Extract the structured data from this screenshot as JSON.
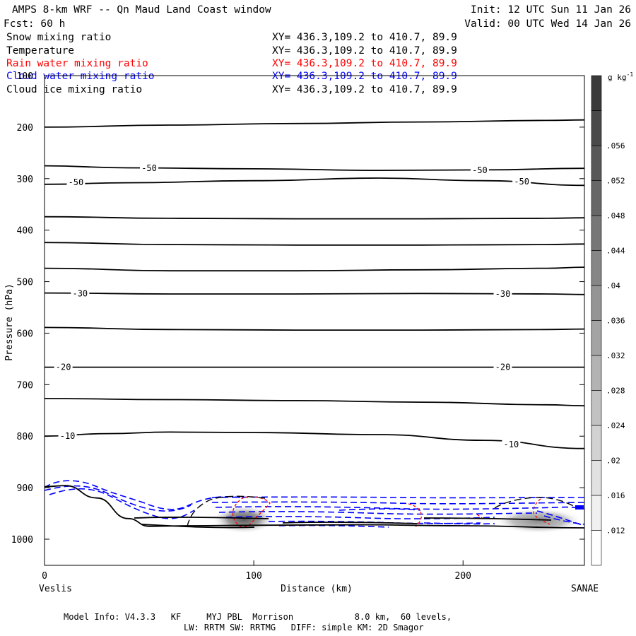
{
  "header": {
    "title": "AMPS 8-km WRF -- Qn Maud Land Coast window",
    "forecast": "Fcst:   60 h",
    "init": "Init: 12 UTC Sun 11 Jan 26",
    "valid": "Valid: 00 UTC Wed 14 Jan 26"
  },
  "fields": [
    {
      "label": "Snow mixing ratio",
      "xy": "XY= 436.3,109.2 to 410.7, 89.9",
      "color": "#000000"
    },
    {
      "label": "Temperature",
      "xy": "XY= 436.3,109.2 to 410.7, 89.9",
      "color": "#000000"
    },
    {
      "label": "Rain water mixing ratio",
      "xy": "XY= 436.3,109.2 to 410.7, 89.9",
      "color": "#ff0000"
    },
    {
      "label": "Cloud water mixing ratio",
      "xy": "XY= 436.3,109.2 to 410.7, 89.9",
      "color": "#0000ff"
    },
    {
      "label": "Cloud ice mixing ratio",
      "xy": "XY= 436.3,109.2 to 410.7, 89.9",
      "color": "#000000"
    }
  ],
  "axes": {
    "ylabel": "Pressure (hPa)",
    "xlabel": "Distance (km)",
    "x_left_endpoint": "Veslis",
    "x_right_endpoint": "SANAE"
  },
  "colorbar": {
    "unit": "g kg",
    "unit_exp": "-1",
    "ticks": [
      ".012",
      ".016",
      ".02",
      ".024",
      ".028",
      ".032",
      ".036",
      ".04",
      ".044",
      ".048",
      ".052",
      ".056"
    ]
  },
  "footer": {
    "line1": "Model Info: V4.3.3   KF     MYJ PBL  Morrison            8.0 km,  60 levels,",
    "line2": "LW: RRTM SW: RRTMG   DIFF: simple KM: 2D Smagor"
  },
  "chart_data": {
    "type": "line",
    "title": "AMPS 8-km WRF -- Qn Maud Land Coast window",
    "xlabel": "Distance (km)",
    "ylabel": "Pressure (hPa)",
    "xlim": [
      0,
      258
    ],
    "ylim": [
      1050,
      100
    ],
    "y_reversed": true,
    "xticks": [
      0,
      100,
      200
    ],
    "yticks": [
      100,
      200,
      300,
      400,
      500,
      600,
      700,
      800,
      900,
      1000
    ],
    "grid": false,
    "temperature_contours": [
      {
        "x": [
          0,
          60,
          120,
          180,
          240,
          258
        ],
        "y": [
          200,
          196,
          193,
          190,
          187,
          186
        ]
      },
      {
        "x": [
          0,
          40,
          100,
          160,
          210,
          258
        ],
        "y": [
          275,
          279,
          281,
          284,
          283,
          280
        ]
      },
      {
        "x": [
          0,
          40,
          100,
          160,
          210,
          258
        ],
        "y": [
          311,
          308,
          304,
          299,
          304,
          313
        ]
      },
      {
        "x": [
          0,
          60,
          120,
          180,
          240,
          258
        ],
        "y": [
          374,
          377,
          378,
          378,
          377,
          376
        ]
      },
      {
        "x": [
          0,
          60,
          120,
          180,
          240,
          258
        ],
        "y": [
          424,
          428,
          429,
          429,
          428,
          427
        ]
      },
      {
        "x": [
          0,
          60,
          120,
          180,
          240,
          258
        ],
        "y": [
          474,
          479,
          479,
          477,
          474,
          472
        ]
      },
      {
        "x": [
          0,
          60,
          120,
          180,
          240,
          258
        ],
        "y": [
          522,
          524,
          524,
          523,
          524,
          525
        ]
      },
      {
        "x": [
          0,
          60,
          120,
          180,
          240,
          258
        ],
        "y": [
          589,
          593,
          594,
          594,
          593,
          592
        ]
      },
      {
        "x": [
          0,
          60,
          120,
          180,
          240,
          258
        ],
        "y": [
          666,
          666,
          666,
          666,
          666,
          666
        ]
      },
      {
        "x": [
          0,
          60,
          120,
          180,
          240,
          258
        ],
        "y": [
          727,
          729,
          731,
          734,
          739,
          741
        ]
      },
      {
        "x": [
          0,
          30,
          60,
          100,
          160,
          210,
          258
        ],
        "y": [
          800,
          795,
          792,
          793,
          797,
          808,
          824
        ]
      }
    ],
    "contour_labels": [
      {
        "text": "-50",
        "x": 50,
        "y": 280
      },
      {
        "text": "-50",
        "x": 208,
        "y": 284
      },
      {
        "text": "-50",
        "x": 15,
        "y": 307
      },
      {
        "text": "-50",
        "x": 228,
        "y": 306
      },
      {
        "text": "-30",
        "x": 17,
        "y": 523
      },
      {
        "text": "-30",
        "x": 219,
        "y": 524
      },
      {
        "text": "-20",
        "x": 9,
        "y": 666
      },
      {
        "text": "-20",
        "x": 219,
        "y": 666
      },
      {
        "text": "-10",
        "x": 11,
        "y": 800
      },
      {
        "text": "-10",
        "x": 223,
        "y": 816
      }
    ],
    "terrain": {
      "x": [
        0,
        10,
        25,
        40,
        50,
        70,
        100,
        150,
        200,
        258
      ],
      "y": [
        898,
        896,
        920,
        960,
        975,
        974,
        973,
        972,
        974,
        978
      ]
    },
    "snow_max_regions": [
      {
        "x": 96,
        "y": 960,
        "value": 0.04
      },
      {
        "x": 235,
        "y": 960,
        "value": 0.036
      }
    ]
  }
}
